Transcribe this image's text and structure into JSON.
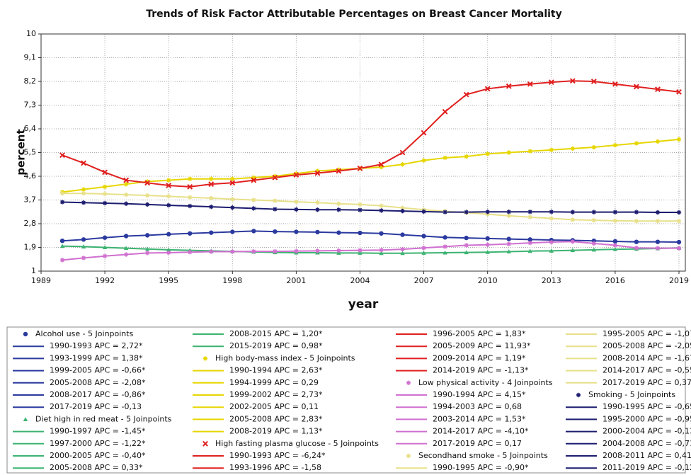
{
  "chart_data": {
    "type": "line",
    "title": "Trends of Risk Factor Attributable Percentages on Breast Cancer Mortality",
    "x_label": "year",
    "y_label": "percent",
    "x": [
      1990,
      1991,
      1992,
      1993,
      1994,
      1995,
      1996,
      1997,
      1998,
      1999,
      2000,
      2001,
      2002,
      2003,
      2004,
      2005,
      2006,
      2007,
      2008,
      2009,
      2010,
      2011,
      2012,
      2013,
      2014,
      2015,
      2016,
      2017,
      2018,
      2019
    ],
    "xlim": [
      1989,
      2019.3
    ],
    "xticks": [
      1989,
      1992,
      1995,
      1998,
      2001,
      2004,
      2007,
      2010,
      2013,
      2016,
      2019
    ],
    "ylim": [
      1,
      10
    ],
    "yticks": [
      1,
      {
        "value": 1.9,
        "label": "1,9"
      },
      {
        "value": 2.8,
        "label": "2,8"
      },
      {
        "value": 3.7,
        "label": "3,7"
      },
      {
        "value": 4.6,
        "label": "4,6"
      },
      {
        "value": 5.5,
        "label": "5,5"
      },
      {
        "value": 6.4,
        "label": "6,4"
      },
      {
        "value": 7.3,
        "label": "7,3"
      },
      {
        "value": 8.2,
        "label": "8,2"
      },
      {
        "value": 9.1,
        "label": "9,1"
      },
      10
    ],
    "grid": true,
    "series": [
      {
        "name": "Alcohol use - 5 Joinpoints",
        "color": "#2b3a9f",
        "marker": "circle",
        "segments": [
          "1990-1993 APC = 2,72*",
          "1993-1999 APC = 1,38*",
          "1999-2005 APC = -0,66*",
          "2005-2008 APC = -2,08*",
          "2008-2017 APC = -0,86*",
          "2017-2019 APC = -0,13"
        ],
        "values": [
          2.15,
          2.2,
          2.27,
          2.33,
          2.36,
          2.4,
          2.43,
          2.46,
          2.49,
          2.52,
          2.5,
          2.49,
          2.48,
          2.46,
          2.45,
          2.43,
          2.38,
          2.33,
          2.28,
          2.26,
          2.24,
          2.22,
          2.2,
          2.18,
          2.17,
          2.15,
          2.13,
          2.11,
          2.11,
          2.1
        ]
      },
      {
        "name": "Diet high in red meat - 5 Joinpoints",
        "color": "#3cb371",
        "marker": "triangle",
        "segments": [
          "1990-1997 APC = -1,45*",
          "1997-2000 APC = -1,22*",
          "2000-2005 APC = -0,40*",
          "2005-2008 APC = 0,33*",
          "2008-2015 APC = 1,20*",
          "2015-2019 APC = 0,98*"
        ],
        "values": [
          1.95,
          1.93,
          1.9,
          1.87,
          1.84,
          1.81,
          1.79,
          1.77,
          1.75,
          1.73,
          1.71,
          1.7,
          1.7,
          1.69,
          1.69,
          1.68,
          1.68,
          1.69,
          1.7,
          1.71,
          1.72,
          1.74,
          1.76,
          1.77,
          1.79,
          1.81,
          1.83,
          1.84,
          1.86,
          1.88
        ]
      },
      {
        "name": "High body-mass index - 5 Joinpoints",
        "color": "#e6d600",
        "marker": "star",
        "segments": [
          "1990-1994 APC = 2,63*",
          "1994-1999 APC = 0,29",
          "1999-2002 APC = 2,73*",
          "2002-2005 APC = 0,11",
          "2005-2008 APC = 2,83*",
          "2008-2019 APC = 1,13*"
        ],
        "values": [
          4.0,
          4.1,
          4.2,
          4.3,
          4.4,
          4.45,
          4.5,
          4.5,
          4.5,
          4.55,
          4.6,
          4.7,
          4.8,
          4.85,
          4.9,
          4.95,
          5.05,
          5.2,
          5.3,
          5.35,
          5.45,
          5.5,
          5.55,
          5.6,
          5.65,
          5.7,
          5.78,
          5.85,
          5.92,
          6.0
        ]
      },
      {
        "name": "High fasting plasma glucose - 5 Joinpoints",
        "color": "#e02020",
        "marker": "cross",
        "segments": [
          "1990-1993 APC = -6,24*",
          "1993-1996 APC = -1,58",
          "1996-2005 APC = 1,83*",
          "2005-2009 APC = 11,93*",
          "2009-2014 APC = 1,19*",
          "2014-2019 APC = -1,13*"
        ],
        "values": [
          5.4,
          5.1,
          4.75,
          4.45,
          4.35,
          4.25,
          4.2,
          4.3,
          4.35,
          4.45,
          4.55,
          4.65,
          4.72,
          4.8,
          4.9,
          5.05,
          5.5,
          6.25,
          7.05,
          7.7,
          7.92,
          8.02,
          8.1,
          8.17,
          8.22,
          8.2,
          8.1,
          8.0,
          7.9,
          7.8
        ]
      },
      {
        "name": "Low physical activity - 4 Joinpoints",
        "color": "#d070d0",
        "marker": "star",
        "segments": [
          "1990-1994 APC = 4,15*",
          "1994-2003 APC = 0,68",
          "2003-2014 APC = 1,53*",
          "2014-2017 APC = -4,10*",
          "2017-2019 APC = 0,17"
        ],
        "values": [
          1.42,
          1.5,
          1.57,
          1.63,
          1.69,
          1.7,
          1.72,
          1.74,
          1.74,
          1.75,
          1.75,
          1.76,
          1.77,
          1.78,
          1.79,
          1.8,
          1.83,
          1.88,
          1.93,
          1.98,
          2.0,
          2.03,
          2.07,
          2.1,
          2.12,
          2.05,
          1.98,
          1.88,
          1.87,
          1.87
        ]
      },
      {
        "name": "Secondhand smoke - 5 Joinpoints",
        "color": "#e8e08a",
        "marker": "star",
        "segments": [
          "1990-1995 APC = -0,90*",
          "1995-2005 APC = -1,07*",
          "2005-2008 APC = -2,05*",
          "2008-2014 APC = -1,67*",
          "2014-2017 APC = -0,55*",
          "2017-2019 APC = 0,37*"
        ],
        "values": [
          3.95,
          3.95,
          3.93,
          3.9,
          3.87,
          3.84,
          3.8,
          3.77,
          3.73,
          3.7,
          3.67,
          3.63,
          3.6,
          3.56,
          3.53,
          3.48,
          3.4,
          3.33,
          3.27,
          3.22,
          3.16,
          3.1,
          3.05,
          3.0,
          2.95,
          2.93,
          2.91,
          2.9,
          2.9,
          2.9
        ]
      },
      {
        "name": "Smoking - 5 Joinpoints",
        "color": "#1c1c70",
        "marker": "star",
        "segments": [
          "1990-1995 APC = -0,65*",
          "1995-2000 APC = -0,95*",
          "2000-2004 APC = -0,13",
          "2004-2008 APC = -0,71*",
          "2008-2011 APC = 0,41*",
          "2011-2019 APC = -0,12*"
        ],
        "values": [
          3.62,
          3.6,
          3.58,
          3.56,
          3.53,
          3.5,
          3.47,
          3.44,
          3.41,
          3.38,
          3.35,
          3.34,
          3.33,
          3.33,
          3.32,
          3.3,
          3.28,
          3.26,
          3.24,
          3.24,
          3.25,
          3.25,
          3.25,
          3.25,
          3.24,
          3.24,
          3.24,
          3.24,
          3.23,
          3.23
        ]
      }
    ]
  }
}
